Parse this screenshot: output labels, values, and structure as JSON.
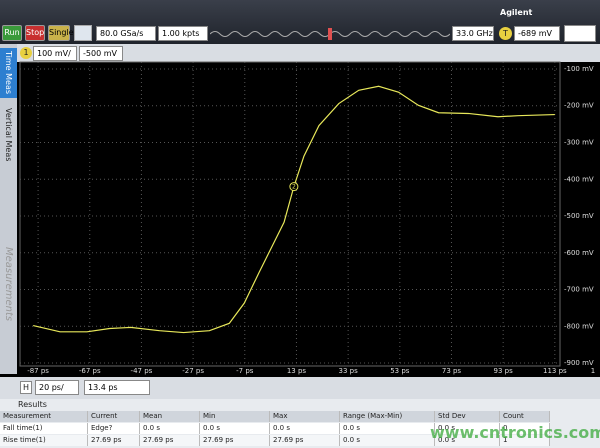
{
  "toolbar": {
    "run": "Run",
    "stop": "Stop",
    "single": "Single",
    "sample_rate": "80.0 GSa/s",
    "memory": "1.00 kpts",
    "bandwidth": "33.0 GHz",
    "trigger_level": "-689 mV",
    "brand": "Agilent"
  },
  "channel": {
    "number": "1",
    "scale": "100 mV/",
    "offset": "-500 mV"
  },
  "side_tabs": [
    "Time Meas",
    "Vertical Meas",
    "Measurements"
  ],
  "chart_data": {
    "type": "line",
    "x": [
      -88.9,
      -78.5,
      -68.1,
      -59.3,
      -51.2,
      -40.0,
      -30.7,
      -20.7,
      -13.0,
      -7.2,
      -1.5,
      4.3,
      8.2,
      12.0,
      15.9,
      21.7,
      29.4,
      37.1,
      44.8,
      52.5,
      60.2,
      68.0,
      79.5,
      91.0,
      98.7,
      113.0
    ],
    "series": [
      {
        "color": "#e8e85a",
        "values": [
          -798,
          -815,
          -815,
          -806,
          -803,
          -812,
          -817,
          -812,
          -792,
          -737,
          -654,
          -572,
          -517,
          -420,
          -337,
          -254,
          -194,
          -158,
          -147,
          -163,
          -199,
          -219,
          -221,
          -230,
          -227,
          -224
        ]
      }
    ],
    "xlim": [
      -94,
      115
    ],
    "ylim": [
      -908,
      -81
    ],
    "xticks": [
      {
        "value": -87,
        "label": "-87 ps"
      },
      {
        "value": -67,
        "label": "-67 ps"
      },
      {
        "value": -47,
        "label": "-47 ps"
      },
      {
        "value": -27,
        "label": "-27 ps"
      },
      {
        "value": -7,
        "label": "-7 ps"
      },
      {
        "value": 13,
        "label": "13 ps"
      },
      {
        "value": 33,
        "label": "33 ps"
      },
      {
        "value": 53,
        "label": "53 ps"
      },
      {
        "value": 73,
        "label": "73 ps"
      },
      {
        "value": 93,
        "label": "93 ps"
      },
      {
        "value": 113,
        "label": "113 ps"
      }
    ],
    "yticks": [
      {
        "value": -100,
        "label": "-100 mV"
      },
      {
        "value": -200,
        "label": "-200 mV"
      },
      {
        "value": -300,
        "label": "-300 mV"
      },
      {
        "value": -400,
        "label": "-400 mV"
      },
      {
        "value": -500,
        "label": "-500 mV"
      },
      {
        "value": -600,
        "label": "-600 mV"
      },
      {
        "value": -700,
        "label": "-700 mV"
      },
      {
        "value": -800,
        "label": "-800 mV"
      },
      {
        "value": -900,
        "label": "-900 mV"
      }
    ],
    "grid": true,
    "marker_label": "2"
  },
  "timebase": {
    "label": "H",
    "scale": "20 ps/",
    "position": "13.4 ps"
  },
  "page_number": "1",
  "results": {
    "title": "Results",
    "columns": [
      "Measurement",
      "Current",
      "Mean",
      "Min",
      "Max",
      "Range (Max-Min)",
      "Std Dev",
      "Count"
    ],
    "rows": [
      [
        "Fall time(1)",
        "Edge?",
        "0.0 s",
        "0.0 s",
        "0.0 s",
        "0.0 s",
        "0.0 s",
        "0"
      ],
      [
        "Rise time(1)",
        "27.69 ps",
        "27.69 ps",
        "27.69 ps",
        "27.69 ps",
        "0.0 s",
        "0.0 s",
        "1"
      ]
    ]
  },
  "watermark": "www.cntronics.com"
}
